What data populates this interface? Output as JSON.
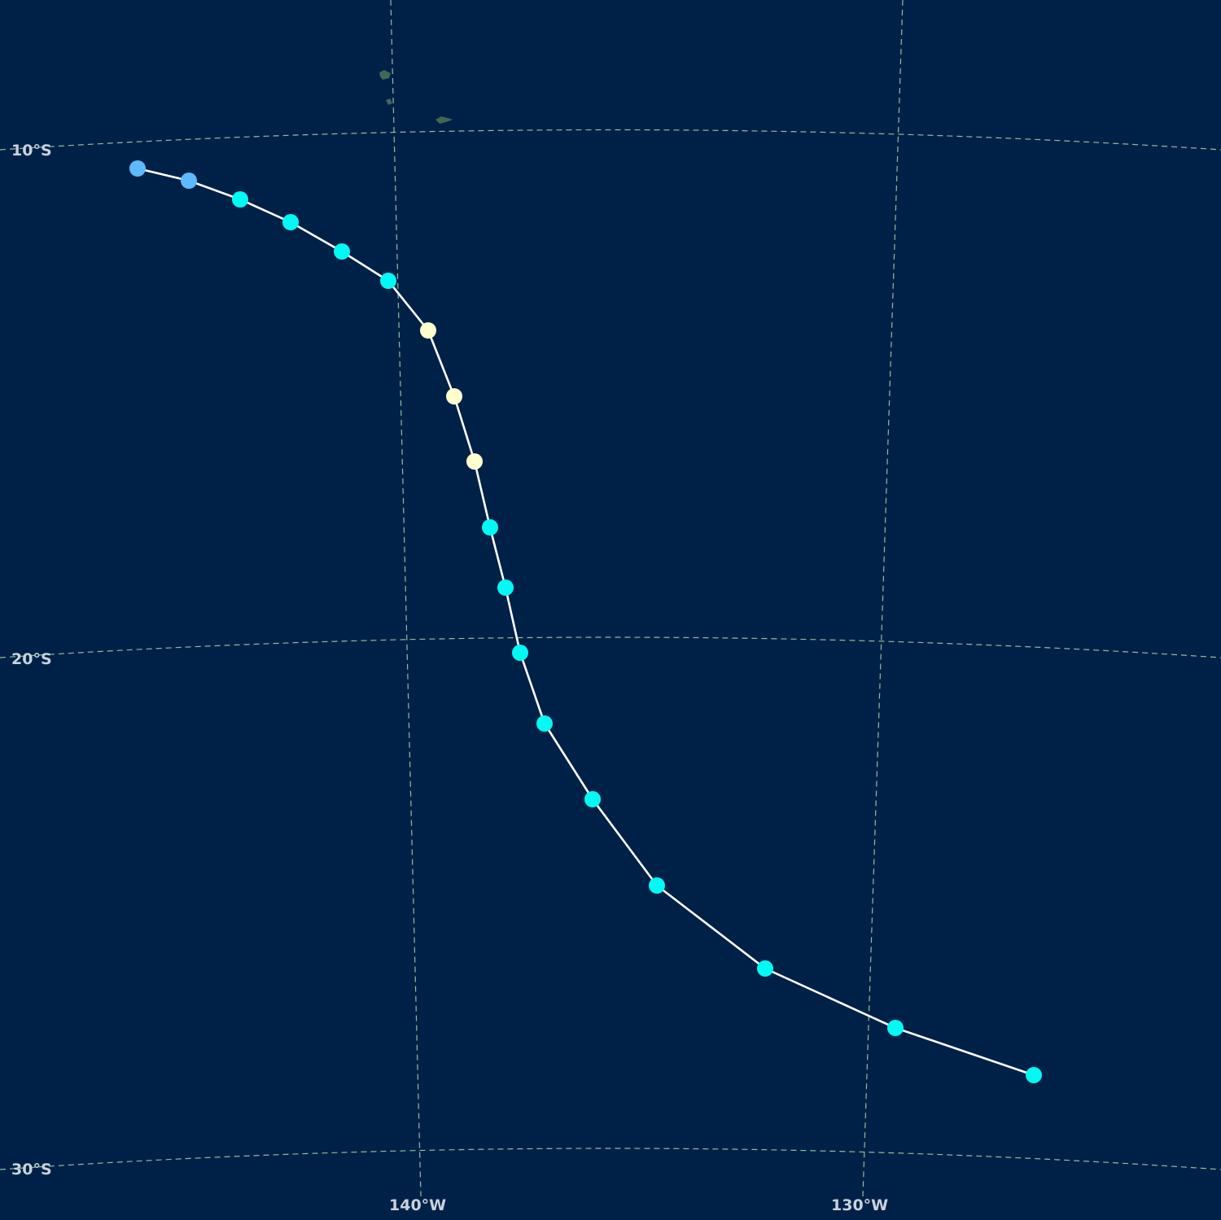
{
  "map": {
    "background_color": "#002147",
    "grid_color": "#7fc79a",
    "track_color": "#ffffff",
    "land_color": "#3a6b55",
    "latitude_labels": [
      "10°S",
      "20°S",
      "30°S"
    ],
    "longitude_labels": [
      "140°W",
      "130°W"
    ],
    "islands": [
      "marquesas-island-1",
      "marquesas-island-2",
      "marquesas-island-3"
    ],
    "storm_track": {
      "legend_colors": {
        "depression": "#5ebaff",
        "tropical_storm": "#00faf4",
        "category_1": "#ffffcc"
      },
      "points": [
        {
          "category": "depression"
        },
        {
          "category": "depression"
        },
        {
          "category": "tropical_storm"
        },
        {
          "category": "tropical_storm"
        },
        {
          "category": "tropical_storm"
        },
        {
          "category": "tropical_storm"
        },
        {
          "category": "category_1"
        },
        {
          "category": "category_1"
        },
        {
          "category": "category_1"
        },
        {
          "category": "tropical_storm"
        },
        {
          "category": "tropical_storm"
        },
        {
          "category": "tropical_storm"
        },
        {
          "category": "tropical_storm"
        },
        {
          "category": "tropical_storm"
        },
        {
          "category": "tropical_storm"
        },
        {
          "category": "tropical_storm"
        },
        {
          "category": "tropical_storm"
        },
        {
          "category": "tropical_storm"
        }
      ]
    }
  }
}
